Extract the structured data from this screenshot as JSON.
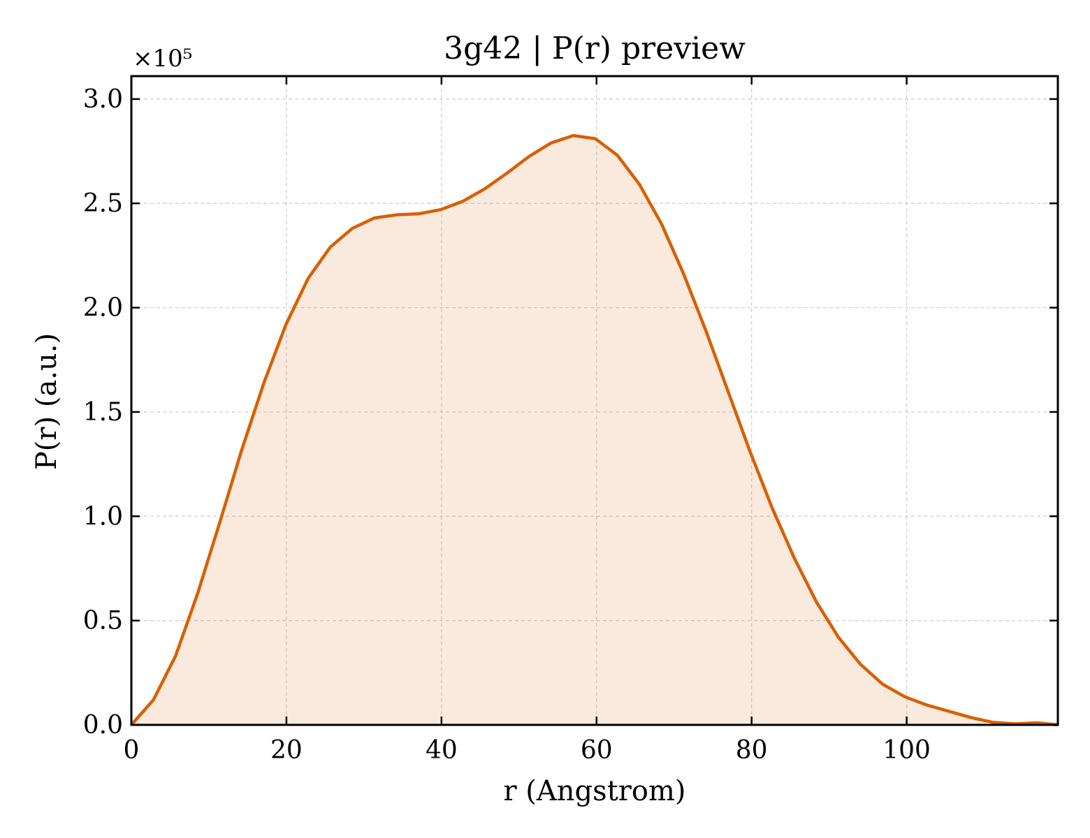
{
  "chart_data": {
    "type": "area",
    "title": "3g42 | P(r) preview",
    "xlabel": "r (Angstrom)",
    "ylabel": "P(r) (a.u.)",
    "y_multiplier_label": "×10⁵",
    "xlim": [
      0,
      119.5
    ],
    "ylim": [
      0,
      3.11
    ],
    "xticks": [
      0,
      20,
      40,
      60,
      80,
      100
    ],
    "xtick_labels": [
      "0",
      "20",
      "40",
      "60",
      "80",
      "100"
    ],
    "yticks": [
      0.0,
      0.5,
      1.0,
      1.5,
      2.0,
      2.5,
      3.0
    ],
    "ytick_labels": [
      "0.0",
      "0.5",
      "1.0",
      "1.5",
      "2.0",
      "2.5",
      "3.0"
    ],
    "grid": true,
    "grid_style": "dashed",
    "line_color": "#d95f02",
    "fill_color": "#d95f02",
    "fill_opacity": 0.13,
    "series": [
      {
        "x": [
          0,
          2.85,
          5.7,
          8.55,
          11.4,
          14.25,
          17.1,
          19.95,
          22.8,
          25.65,
          28.5,
          31.35,
          34.2,
          37.05,
          39.9,
          42.75,
          45.6,
          48.45,
          51.3,
          54.15,
          57.0,
          59.85,
          62.7,
          65.55,
          68.4,
          71.25,
          74.1,
          76.95,
          79.8,
          82.65,
          85.5,
          88.35,
          91.2,
          94.05,
          96.9,
          99.75,
          102.6,
          105.45,
          108.3,
          111.15,
          114.0,
          116.85,
          119.5
        ],
        "y": [
          0.0,
          0.12,
          0.33,
          0.63,
          0.97,
          1.32,
          1.64,
          1.92,
          2.14,
          2.29,
          2.38,
          2.43,
          2.445,
          2.45,
          2.47,
          2.51,
          2.57,
          2.645,
          2.725,
          2.79,
          2.825,
          2.81,
          2.73,
          2.59,
          2.4,
          2.16,
          1.89,
          1.6,
          1.31,
          1.04,
          0.8,
          0.59,
          0.42,
          0.29,
          0.195,
          0.135,
          0.095,
          0.065,
          0.035,
          0.012,
          0.005,
          0.01,
          0.0
        ]
      }
    ]
  }
}
